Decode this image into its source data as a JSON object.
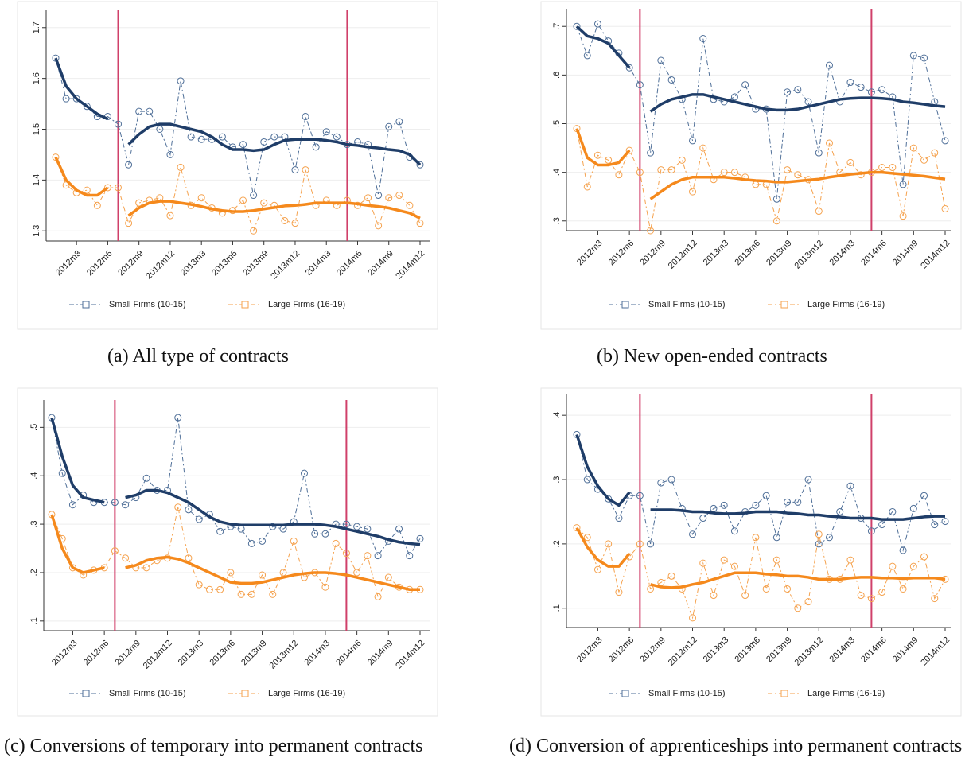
{
  "chart_data": [
    {
      "type": "line",
      "caption": "(a) All type of contracts",
      "categories": [
        null,
        null,
        "2012m3",
        null,
        null,
        "2012m6",
        null,
        null,
        "2012m9",
        null,
        null,
        "2012m12",
        null,
        null,
        "2013m3",
        null,
        null,
        "2013m6",
        null,
        null,
        "2013m9",
        null,
        null,
        "2013m12",
        null,
        null,
        "2014m3",
        null,
        null,
        "2014m6",
        null,
        null,
        "2014m9",
        null,
        null,
        "2014m12"
      ],
      "ylim": [
        1.28,
        1.72
      ],
      "yticks": [
        1.3,
        1.4,
        1.5,
        1.6,
        1.7
      ],
      "grid": true,
      "series": [
        {
          "name": "Small Firms (10-15)",
          "color": "#4f6f98",
          "fit_color": "#1f3d68",
          "values": [
            1.64,
            1.56,
            1.56,
            1.545,
            1.525,
            1.525,
            1.51,
            1.43,
            1.535,
            1.535,
            1.5,
            1.45,
            1.595,
            1.485,
            1.48,
            1.48,
            1.485,
            1.465,
            1.47,
            1.37,
            1.475,
            1.485,
            1.485,
            1.42,
            1.525,
            1.465,
            1.495,
            1.485,
            1.47,
            1.475,
            1.47,
            1.37,
            1.505,
            1.515,
            1.445,
            1.43
          ],
          "smooth": [
            1.64,
            1.585,
            1.56,
            1.545,
            1.53,
            1.52,
            null,
            1.47,
            1.49,
            1.505,
            1.51,
            1.51,
            1.505,
            1.5,
            1.495,
            1.485,
            1.47,
            1.46,
            1.46,
            1.458,
            1.46,
            1.47,
            1.478,
            1.48,
            1.48,
            1.48,
            1.478,
            1.475,
            1.47,
            1.468,
            1.465,
            1.463,
            1.46,
            1.458,
            1.45,
            1.43
          ]
        },
        {
          "name": "Large Firms (16-19)",
          "color": "#f5a24e",
          "fit_color": "#f5891c",
          "values": [
            1.445,
            1.39,
            1.375,
            1.38,
            1.35,
            1.385,
            1.385,
            1.315,
            1.355,
            1.36,
            1.365,
            1.33,
            1.425,
            1.35,
            1.365,
            1.345,
            1.335,
            1.34,
            1.36,
            1.3,
            1.355,
            1.35,
            1.32,
            1.315,
            1.42,
            1.35,
            1.36,
            1.35,
            1.36,
            1.35,
            1.365,
            1.31,
            1.365,
            1.37,
            1.35,
            1.315
          ],
          "smooth": [
            1.445,
            1.4,
            1.38,
            1.37,
            1.37,
            1.385,
            null,
            1.33,
            1.345,
            1.355,
            1.358,
            1.358,
            1.355,
            1.352,
            1.348,
            1.343,
            1.34,
            1.338,
            1.338,
            1.34,
            1.343,
            1.346,
            1.349,
            1.35,
            1.352,
            1.355,
            1.355,
            1.355,
            1.355,
            1.353,
            1.35,
            1.348,
            1.345,
            1.34,
            1.335,
            1.325
          ]
        }
      ]
    },
    {
      "type": "line",
      "caption": "(b) New open-ended contracts",
      "categories": [
        null,
        null,
        "2012m3",
        null,
        null,
        "2012m6",
        null,
        null,
        "2012m9",
        null,
        null,
        "2012m12",
        null,
        null,
        "2013m3",
        null,
        null,
        "2013m6",
        null,
        null,
        "2013m9",
        null,
        null,
        "2013m12",
        null,
        null,
        "2014m3",
        null,
        null,
        "2014m6",
        null,
        null,
        "2014m9",
        null,
        null,
        "2014m12"
      ],
      "ylim": [
        0.28,
        0.72
      ],
      "yticks": [
        {
          "value": 0.3,
          "label": ".3"
        },
        {
          "value": 0.4,
          "label": ".4"
        },
        {
          "value": 0.5,
          "label": ".5"
        },
        {
          "value": 0.6,
          "label": ".6"
        },
        {
          "value": 0.7,
          "label": ".7"
        }
      ],
      "grid": true,
      "series": [
        {
          "name": "Small Firms (10-15)",
          "color": "#4f6f98",
          "fit_color": "#1f3d68",
          "values": [
            0.7,
            0.64,
            0.705,
            0.67,
            0.645,
            0.615,
            0.58,
            0.44,
            0.63,
            0.59,
            0.55,
            0.465,
            0.675,
            0.55,
            0.545,
            0.555,
            0.58,
            0.53,
            0.53,
            0.345,
            0.565,
            0.57,
            0.545,
            0.44,
            0.62,
            0.545,
            0.585,
            0.575,
            0.565,
            0.57,
            0.555,
            0.375,
            0.64,
            0.635,
            0.545,
            0.465
          ],
          "smooth": [
            0.7,
            0.68,
            0.675,
            0.665,
            0.64,
            0.615,
            null,
            0.525,
            0.54,
            0.55,
            0.555,
            0.56,
            0.56,
            0.555,
            0.55,
            0.545,
            0.54,
            0.535,
            0.53,
            0.528,
            0.528,
            0.53,
            0.535,
            0.54,
            0.545,
            0.55,
            0.552,
            0.553,
            0.553,
            0.552,
            0.55,
            0.545,
            0.543,
            0.54,
            0.537,
            0.535
          ]
        },
        {
          "name": "Large Firms (16-19)",
          "color": "#f5a24e",
          "fit_color": "#f5891c",
          "values": [
            0.49,
            0.37,
            0.435,
            0.425,
            0.395,
            0.445,
            0.4,
            0.28,
            0.405,
            0.405,
            0.425,
            0.36,
            0.45,
            0.385,
            0.4,
            0.4,
            0.39,
            0.375,
            0.375,
            0.3,
            0.405,
            0.395,
            0.385,
            0.32,
            0.46,
            0.4,
            0.42,
            0.395,
            0.4,
            0.41,
            0.41,
            0.31,
            0.45,
            0.425,
            0.44,
            0.325
          ],
          "smooth": [
            0.49,
            0.43,
            0.415,
            0.415,
            0.42,
            0.445,
            null,
            0.345,
            0.36,
            0.375,
            0.385,
            0.39,
            0.39,
            0.39,
            0.39,
            0.388,
            0.385,
            0.383,
            0.382,
            0.38,
            0.38,
            0.382,
            0.384,
            0.386,
            0.39,
            0.393,
            0.396,
            0.398,
            0.4,
            0.4,
            0.398,
            0.396,
            0.394,
            0.392,
            0.389,
            0.386
          ]
        }
      ]
    },
    {
      "type": "line",
      "caption": "(c) Conversions of temporary into permanent contracts",
      "categories": [
        null,
        null,
        "2012m3",
        null,
        null,
        "2012m6",
        null,
        null,
        "2012m9",
        null,
        null,
        "2012m12",
        null,
        null,
        "2013m3",
        null,
        null,
        "2013m6",
        null,
        null,
        "2013m9",
        null,
        null,
        "2013m12",
        null,
        null,
        "2014m3",
        null,
        null,
        "2014m6",
        null,
        null,
        "2014m9",
        null,
        null,
        "2014m12"
      ],
      "ylim": [
        0.08,
        0.54
      ],
      "yticks": [
        {
          "value": 0.1,
          "label": ".1"
        },
        {
          "value": 0.2,
          "label": ".2"
        },
        {
          "value": 0.3,
          "label": ".3"
        },
        {
          "value": 0.4,
          "label": ".4"
        },
        {
          "value": 0.5,
          "label": ".5"
        }
      ],
      "grid": true,
      "series": [
        {
          "name": "Small Firms (10-15)",
          "color": "#4f6f98",
          "fit_color": "#1f3d68",
          "values": [
            0.52,
            0.405,
            0.34,
            0.36,
            0.345,
            0.345,
            0.345,
            0.34,
            0.355,
            0.395,
            0.37,
            0.37,
            0.52,
            0.33,
            0.31,
            0.32,
            0.285,
            0.295,
            0.29,
            0.26,
            0.265,
            0.295,
            0.29,
            0.305,
            0.405,
            0.28,
            0.28,
            0.3,
            0.3,
            0.295,
            0.29,
            0.235,
            0.265,
            0.29,
            0.235,
            0.27
          ],
          "smooth": [
            0.52,
            0.44,
            0.38,
            0.355,
            0.35,
            0.345,
            null,
            0.355,
            0.36,
            0.37,
            0.37,
            0.365,
            0.355,
            0.345,
            0.33,
            0.315,
            0.305,
            0.3,
            0.298,
            0.298,
            0.298,
            0.298,
            0.298,
            0.3,
            0.3,
            0.3,
            0.298,
            0.295,
            0.29,
            0.285,
            0.28,
            0.275,
            0.268,
            0.263,
            0.26,
            0.258
          ]
        },
        {
          "name": "Large Firms (16-19)",
          "color": "#f5a24e",
          "fit_color": "#f5891c",
          "values": [
            0.32,
            0.27,
            0.21,
            0.195,
            0.205,
            0.21,
            0.245,
            0.23,
            0.21,
            0.21,
            0.225,
            0.23,
            0.335,
            0.23,
            0.175,
            0.165,
            0.165,
            0.2,
            0.155,
            0.155,
            0.195,
            0.155,
            0.2,
            0.265,
            0.19,
            0.2,
            0.17,
            0.26,
            0.24,
            0.2,
            0.235,
            0.15,
            0.19,
            0.17,
            0.165,
            0.165
          ],
          "smooth": [
            0.32,
            0.25,
            0.21,
            0.2,
            0.205,
            0.21,
            null,
            0.21,
            0.215,
            0.225,
            0.23,
            0.232,
            0.228,
            0.22,
            0.21,
            0.2,
            0.19,
            0.18,
            0.178,
            0.178,
            0.18,
            0.185,
            0.19,
            0.195,
            0.198,
            0.2,
            0.2,
            0.198,
            0.195,
            0.19,
            0.185,
            0.18,
            0.175,
            0.17,
            0.165,
            0.165
          ]
        }
      ]
    },
    {
      "type": "line",
      "caption": "(d) Conversion of apprenticeships into permanent contracts",
      "categories": [
        null,
        null,
        "2012m3",
        null,
        null,
        "2012m6",
        null,
        null,
        "2012m9",
        null,
        null,
        "2012m12",
        null,
        null,
        "2013m3",
        null,
        null,
        "2013m6",
        null,
        null,
        "2013m9",
        null,
        null,
        "2013m12",
        null,
        null,
        "2014m3",
        null,
        null,
        "2014m6",
        null,
        null,
        "2014m9",
        null,
        null,
        "2014m12"
      ],
      "ylim": [
        0.07,
        0.42
      ],
      "yticks": [
        {
          "value": 0.1,
          "label": ".1"
        },
        {
          "value": 0.2,
          "label": ".2"
        },
        {
          "value": 0.3,
          "label": ".3"
        },
        {
          "value": 0.4,
          "label": ".4"
        }
      ],
      "grid": true,
      "series": [
        {
          "name": "Small Firms (10-15)",
          "color": "#4f6f98",
          "fit_color": "#1f3d68",
          "values": [
            0.37,
            0.3,
            0.285,
            0.27,
            0.24,
            0.275,
            0.275,
            0.2,
            0.295,
            0.3,
            0.255,
            0.215,
            0.24,
            0.255,
            0.26,
            0.22,
            0.25,
            0.26,
            0.275,
            0.21,
            0.265,
            0.265,
            0.3,
            0.2,
            0.21,
            0.25,
            0.29,
            0.24,
            0.22,
            0.23,
            0.25,
            0.19,
            0.255,
            0.275,
            0.23,
            0.235
          ],
          "smooth": [
            0.37,
            0.32,
            0.29,
            0.27,
            0.26,
            0.28,
            null,
            0.253,
            0.253,
            0.253,
            0.252,
            0.25,
            0.25,
            0.248,
            0.247,
            0.247,
            0.248,
            0.25,
            0.25,
            0.25,
            0.248,
            0.247,
            0.245,
            0.245,
            0.243,
            0.242,
            0.24,
            0.24,
            0.24,
            0.238,
            0.238,
            0.238,
            0.24,
            0.242,
            0.243,
            0.243
          ]
        },
        {
          "name": "Large Firms (16-19)",
          "color": "#f5a24e",
          "fit_color": "#f5891c",
          "values": [
            0.225,
            0.21,
            0.16,
            0.2,
            0.125,
            0.18,
            0.2,
            0.13,
            0.14,
            0.15,
            0.13,
            0.085,
            0.17,
            0.12,
            0.175,
            0.165,
            0.12,
            0.21,
            0.13,
            0.175,
            0.13,
            0.1,
            0.11,
            0.215,
            0.145,
            0.145,
            0.175,
            0.12,
            0.115,
            0.125,
            0.165,
            0.13,
            0.165,
            0.18,
            0.115,
            0.145
          ],
          "smooth": [
            0.225,
            0.195,
            0.175,
            0.165,
            0.165,
            0.185,
            null,
            0.137,
            0.133,
            0.132,
            0.133,
            0.137,
            0.14,
            0.145,
            0.15,
            0.155,
            0.155,
            0.155,
            0.153,
            0.152,
            0.15,
            0.15,
            0.148,
            0.145,
            0.145,
            0.145,
            0.147,
            0.148,
            0.148,
            0.147,
            0.147,
            0.146,
            0.147,
            0.147,
            0.147,
            0.145
          ]
        }
      ]
    }
  ]
}
